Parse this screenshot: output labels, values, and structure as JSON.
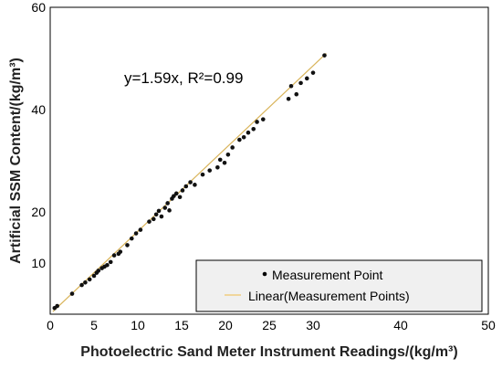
{
  "chart_data": {
    "type": "scatter",
    "title": "",
    "xlabel": "Photoelectric Sand Meter Instrument Readings/(kg/m³)",
    "ylabel": "Artificial SSM Content/(kg/m³)",
    "xlim": [
      0,
      50
    ],
    "ylim": [
      0,
      60
    ],
    "x_tick_labels": [
      "0",
      "5",
      "10",
      "15",
      "20",
      "25",
      "30",
      "40",
      "50"
    ],
    "y_tick_labels": [
      "10",
      "20",
      "40",
      "60"
    ],
    "annotation": "y=1.59x, R²=0.99",
    "legend": {
      "placement": "bottom-right",
      "items": [
        {
          "marker": "•",
          "label": "Measurement Point"
        },
        {
          "label": "Linear(Measurement Points)"
        }
      ]
    },
    "grid": false,
    "fit_line": {
      "x": [
        0.3,
        31.5
      ],
      "y": [
        0.5,
        51.0
      ]
    },
    "series": [
      {
        "name": "Measurement Point",
        "points": [
          [
            0.5,
            1.2
          ],
          [
            0.8,
            1.6
          ],
          [
            2.5,
            4.0
          ],
          [
            3.6,
            5.7
          ],
          [
            4.0,
            6.2
          ],
          [
            4.5,
            6.8
          ],
          [
            5.0,
            7.5
          ],
          [
            5.3,
            8.1
          ],
          [
            5.5,
            8.5
          ],
          [
            5.9,
            9.0
          ],
          [
            6.2,
            9.3
          ],
          [
            6.5,
            9.6
          ],
          [
            6.9,
            10.2
          ],
          [
            7.3,
            11.5
          ],
          [
            7.8,
            11.8
          ],
          [
            8.0,
            12.2
          ],
          [
            8.8,
            13.5
          ],
          [
            9.3,
            14.8
          ],
          [
            9.8,
            15.8
          ],
          [
            10.3,
            16.5
          ],
          [
            11.3,
            18.1
          ],
          [
            11.8,
            18.6
          ],
          [
            12.1,
            19.5
          ],
          [
            12.4,
            20.2
          ],
          [
            12.7,
            19.1
          ],
          [
            13.1,
            20.8
          ],
          [
            13.4,
            21.7
          ],
          [
            13.6,
            20.3
          ],
          [
            13.9,
            22.6
          ],
          [
            14.1,
            23.1
          ],
          [
            14.4,
            23.6
          ],
          [
            14.8,
            22.9
          ],
          [
            15.1,
            24.2
          ],
          [
            15.5,
            25.0
          ],
          [
            16.0,
            25.8
          ],
          [
            16.5,
            25.3
          ],
          [
            17.4,
            27.3
          ],
          [
            18.2,
            28.1
          ],
          [
            19.1,
            28.7
          ],
          [
            19.4,
            30.2
          ],
          [
            19.9,
            29.6
          ],
          [
            20.3,
            31.2
          ],
          [
            20.8,
            32.6
          ],
          [
            21.6,
            34.1
          ],
          [
            22.1,
            34.6
          ],
          [
            22.6,
            35.5
          ],
          [
            23.2,
            36.2
          ],
          [
            23.6,
            37.6
          ],
          [
            24.3,
            38.1
          ],
          [
            27.2,
            42.1
          ],
          [
            27.5,
            44.6
          ],
          [
            28.1,
            43.0
          ],
          [
            28.6,
            45.2
          ],
          [
            29.3,
            46.1
          ],
          [
            30.0,
            47.2
          ],
          [
            31.3,
            50.6
          ]
        ]
      }
    ]
  }
}
